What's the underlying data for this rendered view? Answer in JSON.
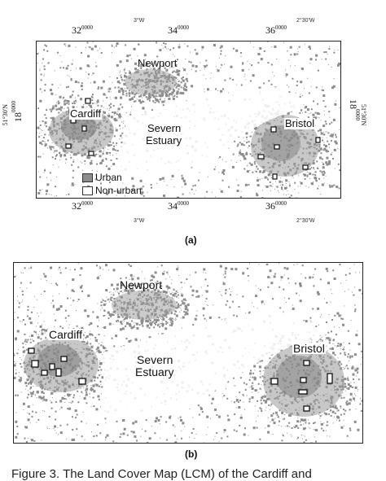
{
  "panel_a": {
    "ticks_top": [
      {
        "base": "32",
        "sup": "0000"
      },
      {
        "base": "34",
        "sup": "0000"
      },
      {
        "base": "36",
        "sup": "0000"
      }
    ],
    "ticks_bottom": [
      {
        "base": "32",
        "sup": "0000"
      },
      {
        "base": "34",
        "sup": "0000"
      },
      {
        "base": "36",
        "sup": "0000"
      }
    ],
    "deg_top": [
      "3°W",
      "2°30'W"
    ],
    "deg_bottom": [
      "3°W",
      "2°30'W"
    ],
    "left_north": "18",
    "left_north_sup": "0000",
    "left_lat": "51°30'N",
    "right_north": "18",
    "right_north_sup": "0000",
    "right_lat": "51°30'N",
    "places": {
      "newport": "Newport",
      "cardiff": "Cardiff",
      "bristol": "Bristol",
      "severn": "Severn",
      "estuary": "Estuary"
    },
    "legend": {
      "urban": "Urban",
      "non_urban": "Non-urban",
      "urban_color": "#8c8c8c"
    },
    "label": "(a)"
  },
  "panel_b": {
    "places": {
      "newport": "Newport",
      "cardiff": "Cardiff",
      "bristol": "Bristol",
      "severn": "Severn",
      "estuary": "Estuary"
    },
    "label": "(b)"
  },
  "caption": "Figure 3. The Land Cover Map (LCM) of the Cardiff and"
}
